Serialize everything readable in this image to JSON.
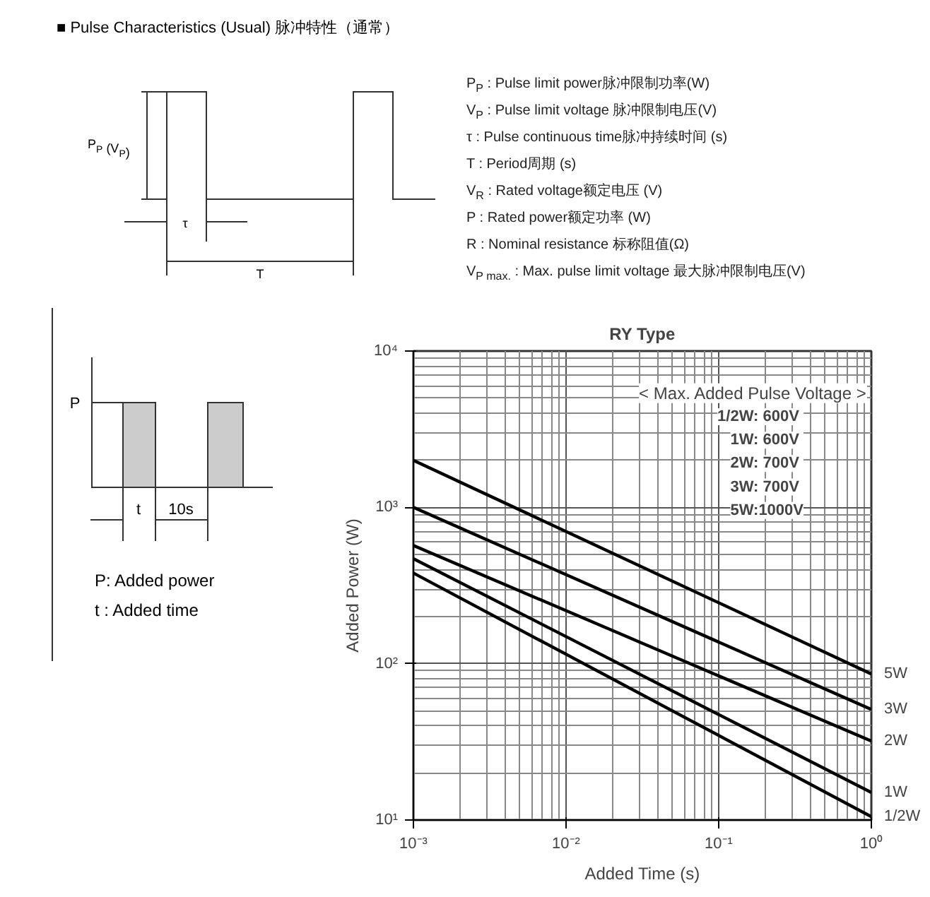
{
  "chart_data": [
    {
      "type": "other",
      "title": "■ Pulse Characteristics (Usual) 脉冲特性（通常）",
      "annotations": [
        "P$_{P}$ (V$_{P}$)",
        "τ",
        "T"
      ]
    },
    {
      "type": "other",
      "annotations": [
        "P$_{P}$ : Pulse limit power脉冲限制功率(W)",
        "V$_{P}$ : Pulse limit voltage 脉冲限制电压(V)",
        "τ : Pulse continuous time脉冲持续时间 (s)",
        "T : Period周期 (s)",
        "V$_{R}$ : Rated voltage额定电压 (V)",
        "P : Rated power额定功率 (W)",
        "R : Nominal resistance 标称阻值(Ω)",
        "V$_{P max.}$ : Max. pulse limit voltage 最大脉冲限制电压(V)"
      ]
    },
    {
      "type": "other",
      "annotations": [
        "P",
        "t",
        "10s",
        "P: Added power",
        "t : Added time"
      ]
    },
    {
      "type": "line",
      "title": "RY Type",
      "xlabel": "Added Time (s)",
      "ylabel": "Added Power (W)",
      "log": "xy",
      "grid": true,
      "x": [
        0.001,
        1
      ],
      "series": [
        {
          "name": "5W",
          "color": "#000000",
          "values": [
            2000,
            86
          ]
        },
        {
          "name": "3W",
          "color": "#000000",
          "values": [
            1000,
            51
          ]
        },
        {
          "name": "2W",
          "color": "#000000",
          "values": [
            570,
            32
          ]
        },
        {
          "name": "1W",
          "color": "#000000",
          "values": [
            470,
            15
          ]
        },
        {
          "name": "1/2W",
          "color": "#000000",
          "values": [
            380,
            10.5
          ]
        }
      ],
      "xlim": [
        0.001,
        1
      ],
      "ylim": [
        10,
        10000
      ],
      "xticks": [
        {
          "value": 0.001,
          "label": "10⁻³"
        },
        {
          "value": 0.01,
          "label": "10⁻²"
        },
        {
          "value": 0.1,
          "label": "10⁻¹"
        },
        {
          "value": 1,
          "label": "10⁰"
        }
      ],
      "yticks": [
        {
          "value": 10,
          "label": "10¹"
        },
        {
          "value": 100,
          "label": "10²"
        },
        {
          "value": 1000,
          "label": "10³"
        },
        {
          "value": 10000,
          "label": "10⁴"
        }
      ],
      "annotations": [
        "< Max. Added Pulse Voltage >",
        "1/2W:  600V",
        "1W:  600V",
        "2W:  700V",
        "3W:  700V",
        "5W:1000V"
      ]
    }
  ]
}
